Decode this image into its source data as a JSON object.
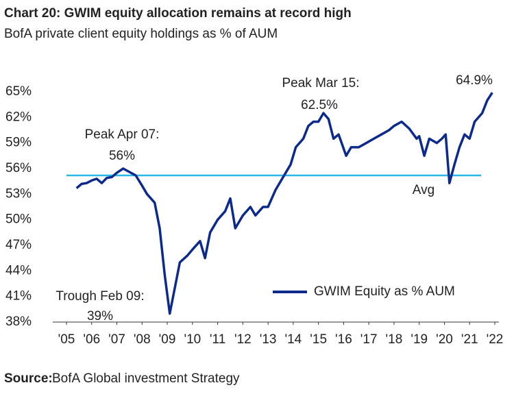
{
  "chart_data": {
    "type": "line",
    "title": "Chart 20: GWIM equity allocation remains at record high",
    "subtitle": "BofA private client equity holdings as % of AUM",
    "series": [
      {
        "name": "GWIM Equity as % AUM",
        "color": "#0b2a8c",
        "x": [
          2005.4,
          2005.6,
          2005.8,
          2006.0,
          2006.2,
          2006.4,
          2006.6,
          2006.8,
          2007.0,
          2007.25,
          2007.5,
          2007.75,
          2008.0,
          2008.2,
          2008.5,
          2008.7,
          2008.9,
          2009.1,
          2009.3,
          2009.5,
          2009.8,
          2010.0,
          2010.3,
          2010.5,
          2010.7,
          2011.0,
          2011.3,
          2011.5,
          2011.7,
          2012.0,
          2012.3,
          2012.5,
          2012.8,
          2013.0,
          2013.3,
          2013.6,
          2013.9,
          2014.1,
          2014.4,
          2014.6,
          2014.8,
          2015.0,
          2015.2,
          2015.4,
          2015.6,
          2015.8,
          2016.1,
          2016.3,
          2016.6,
          2016.9,
          2017.2,
          2017.5,
          2017.8,
          2018.0,
          2018.3,
          2018.6,
          2018.9,
          2019.0,
          2019.2,
          2019.4,
          2019.7,
          2019.9,
          2020.05,
          2020.2,
          2020.4,
          2020.6,
          2020.8,
          2021.0,
          2021.2,
          2021.5,
          2021.7,
          2021.9
        ],
        "values": [
          53.7,
          54.2,
          54.3,
          54.6,
          54.8,
          54.3,
          54.9,
          55.0,
          55.5,
          56.0,
          55.6,
          55.2,
          54.0,
          53.0,
          52.0,
          49.0,
          43.5,
          39.0,
          42.0,
          45.0,
          45.8,
          46.5,
          47.5,
          45.5,
          48.5,
          50.0,
          51.0,
          52.5,
          49.0,
          50.5,
          51.5,
          50.5,
          51.5,
          51.5,
          53.5,
          55.0,
          56.5,
          58.5,
          59.5,
          61.0,
          61.5,
          61.5,
          62.5,
          61.8,
          59.5,
          60.0,
          57.5,
          58.5,
          58.5,
          59.0,
          59.5,
          60.0,
          60.5,
          61.0,
          61.5,
          60.7,
          59.5,
          59.8,
          57.5,
          59.5,
          59.0,
          59.5,
          60.0,
          54.3,
          56.5,
          58.5,
          60.0,
          59.5,
          61.5,
          62.5,
          64.0,
          64.9
        ]
      }
    ],
    "average": {
      "value": 55.2,
      "label": "Avg",
      "color": "#29b6e8"
    },
    "annotations": [
      "Peak Apr 07:",
      "56%",
      "Peak Mar 15:",
      "62.5%",
      "64.9%",
      "Trough Feb 09:",
      "39%"
    ],
    "xlim": [
      2005,
      2022
    ],
    "xticks": [
      {
        "value": 2005,
        "label": "'05"
      },
      {
        "value": 2006,
        "label": "'06"
      },
      {
        "value": 2007,
        "label": "'07"
      },
      {
        "value": 2008,
        "label": "'08"
      },
      {
        "value": 2009,
        "label": "'09"
      },
      {
        "value": 2010,
        "label": "'10"
      },
      {
        "value": 2011,
        "label": "'11"
      },
      {
        "value": 2012,
        "label": "'12"
      },
      {
        "value": 2013,
        "label": "'13"
      },
      {
        "value": 2014,
        "label": "'14"
      },
      {
        "value": 2015,
        "label": "'15"
      },
      {
        "value": 2016,
        "label": "'16"
      },
      {
        "value": 2017,
        "label": "'17"
      },
      {
        "value": 2018,
        "label": "'18"
      },
      {
        "value": 2019,
        "label": "'19"
      },
      {
        "value": 2020,
        "label": "'20"
      },
      {
        "value": 2021,
        "label": "'21"
      },
      {
        "value": 2022,
        "label": "'22"
      }
    ],
    "ylim": [
      38,
      65
    ],
    "yticks": [
      {
        "value": 38,
        "label": "38%"
      },
      {
        "value": 41,
        "label": "41%"
      },
      {
        "value": 44,
        "label": "44%"
      },
      {
        "value": 47,
        "label": "47%"
      },
      {
        "value": 50,
        "label": "50%"
      },
      {
        "value": 53,
        "label": "53%"
      },
      {
        "value": 56,
        "label": "56%"
      },
      {
        "value": 59,
        "label": "59%"
      },
      {
        "value": 62,
        "label": "62%"
      },
      {
        "value": 65,
        "label": "65%"
      }
    ],
    "grid": false
  },
  "source": {
    "label": "Source:",
    "text": "BofA Global investment Strategy"
  }
}
